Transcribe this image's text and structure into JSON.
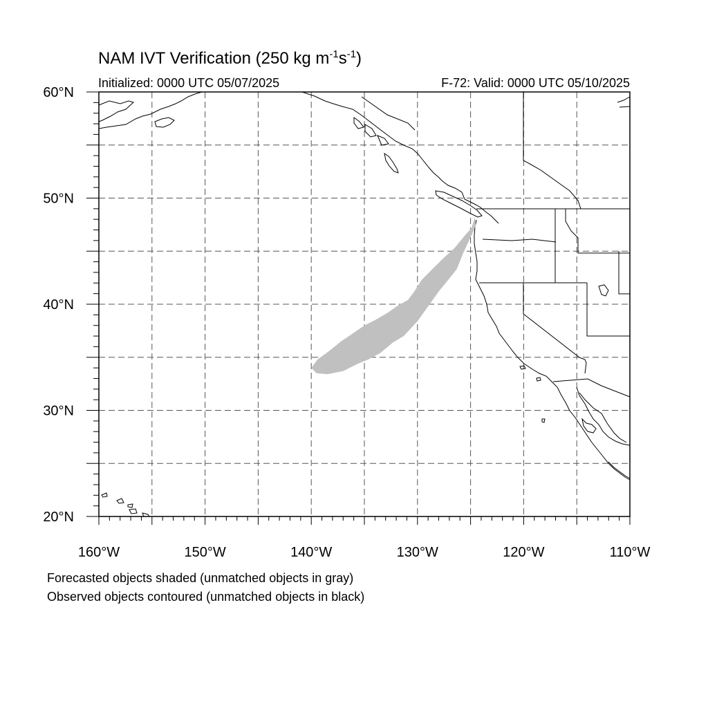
{
  "title": {
    "main": "NAM IVT Verification (250 kg m",
    "sup1": "-1",
    "mid": "s",
    "sup2": "-1",
    "end": ")"
  },
  "initialized": "Initialized: 0000 UTC 05/07/2025",
  "valid": "F-72: Valid: 0000 UTC 05/10/2025",
  "lat_labels": [
    "60°N",
    "50°N",
    "40°N",
    "30°N",
    "20°N"
  ],
  "lon_labels": [
    "160°W",
    "150°W",
    "140°W",
    "130°W",
    "120°W",
    "110°W"
  ],
  "extent": {
    "lon_min": -160,
    "lon_max": -110,
    "lat_min": 20,
    "lat_max": 60
  },
  "grid": {
    "style": "dashed",
    "spacing_deg": 5
  },
  "legend": [
    "Forecasted objects shaded (unmatched objects in gray)",
    "Observed objects contoured (unmatched objects in black)"
  ],
  "forecast_object": {
    "color": "#c0c0c0",
    "status": "unmatched",
    "outline": [
      [
        -124.6,
        48.2
      ],
      [
        -124.9,
        47.2
      ],
      [
        -125.6,
        46.4
      ],
      [
        -126.5,
        45.3
      ],
      [
        -127.6,
        44.3
      ],
      [
        -128.6,
        43.3
      ],
      [
        -129.6,
        42.3
      ],
      [
        -130.3,
        41.2
      ],
      [
        -130.9,
        40.4
      ],
      [
        -131.8,
        39.9
      ],
      [
        -132.8,
        39.2
      ],
      [
        -134.0,
        38.5
      ],
      [
        -135.0,
        38.0
      ],
      [
        -136.0,
        37.3
      ],
      [
        -137.2,
        36.5
      ],
      [
        -138.3,
        35.6
      ],
      [
        -139.4,
        34.8
      ],
      [
        -140.0,
        34.0
      ],
      [
        -139.5,
        33.5
      ],
      [
        -138.5,
        33.4
      ],
      [
        -137.0,
        33.7
      ],
      [
        -135.6,
        34.4
      ],
      [
        -134.6,
        34.8
      ],
      [
        -133.5,
        35.4
      ],
      [
        -132.3,
        36.4
      ],
      [
        -131.3,
        37.0
      ],
      [
        -130.0,
        38.4
      ],
      [
        -129.0,
        39.8
      ],
      [
        -128.0,
        41.2
      ],
      [
        -127.1,
        42.3
      ],
      [
        -126.3,
        43.3
      ],
      [
        -125.7,
        44.8
      ],
      [
        -125.0,
        46.3
      ],
      [
        -124.5,
        47.4
      ]
    ]
  },
  "colors": {
    "land_line": "#000000",
    "grid": "#555555",
    "frame": "#000000",
    "background": "#ffffff"
  }
}
